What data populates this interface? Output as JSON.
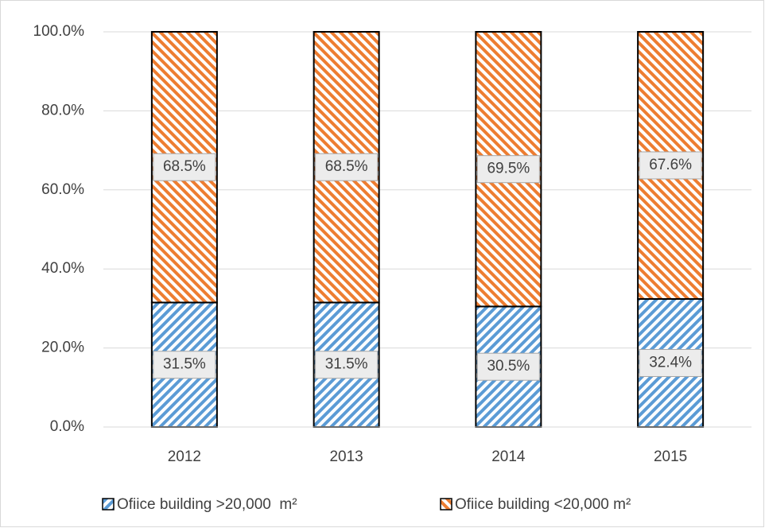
{
  "chart_data": {
    "type": "stacked_bar",
    "categories": [
      "2012",
      "2013",
      "2014",
      "2015"
    ],
    "series": [
      {
        "name": "Ofiice building >20,000  m²",
        "color": "#5b9bd5",
        "values": [
          31.5,
          31.5,
          30.5,
          32.4
        ],
        "value_labels": [
          "31.5%",
          "31.5%",
          "30.5%",
          "32.4%"
        ]
      },
      {
        "name": "Ofiice building <20,000 m²",
        "color": "#ed7d31",
        "values": [
          68.5,
          68.5,
          69.5,
          67.6
        ],
        "value_labels": [
          "68.5%",
          "68.5%",
          "69.5%",
          "67.6%"
        ]
      }
    ],
    "ylim": [
      0,
      100
    ],
    "yticks": [
      {
        "value": 0,
        "label": "0.0%"
      },
      {
        "value": 20,
        "label": "20.0%"
      },
      {
        "value": 40,
        "label": "40.0%"
      },
      {
        "value": 60,
        "label": "60.0%"
      },
      {
        "value": 80,
        "label": "80.0%"
      },
      {
        "value": 100,
        "label": "100.0%"
      }
    ],
    "grid": true,
    "legend": "bottom"
  }
}
